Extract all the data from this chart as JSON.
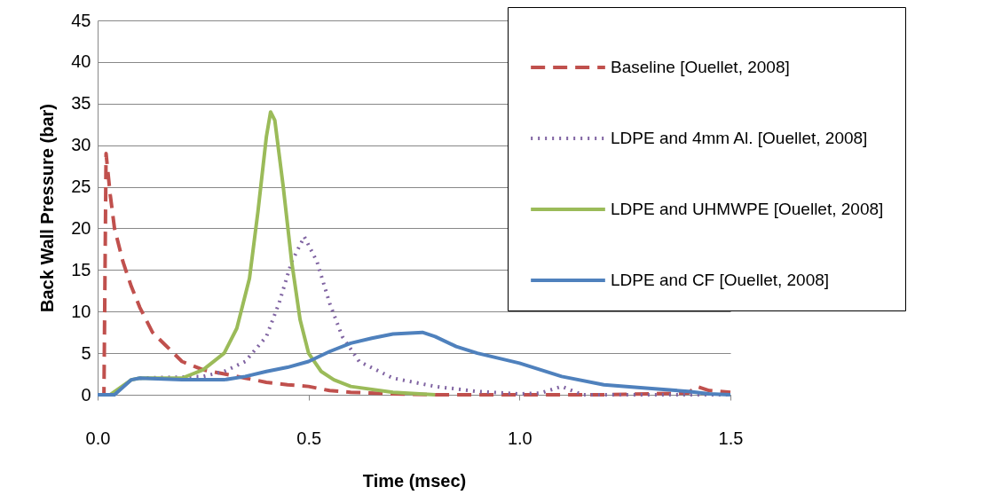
{
  "chart_data": {
    "type": "line",
    "xlabel": "Time (msec)",
    "ylabel": "Back Wall Pressure (bar)",
    "xlim": [
      0,
      1.5
    ],
    "xticks": [
      {
        "value": 0,
        "label": "0.0"
      },
      {
        "value": 0.5,
        "label": "0.5"
      },
      {
        "value": 1,
        "label": "1.0"
      },
      {
        "value": 1.5,
        "label": "1.5"
      }
    ],
    "ylim": [
      0,
      45
    ],
    "yticks": [
      0,
      5,
      10,
      15,
      20,
      25,
      30,
      35,
      40,
      45
    ],
    "grid": "y",
    "legend": "top right",
    "marker": "none",
    "series": [
      {
        "name": "Baseline [Ouellet, 2008]",
        "color": "#c0504d",
        "line_style": "dashed",
        "x": [
          0,
          0.015,
          0.02,
          0.03,
          0.04,
          0.06,
          0.08,
          0.1,
          0.13,
          0.16,
          0.2,
          0.25,
          0.3,
          0.35,
          0.4,
          0.45,
          0.5,
          0.55,
          0.6,
          0.7,
          0.8,
          1.0,
          1.2,
          1.4,
          1.42,
          1.45,
          1.5
        ],
        "values": [
          0,
          0,
          29,
          24,
          20,
          16,
          13,
          10.5,
          7.5,
          6,
          4,
          3,
          2.5,
          2,
          1.5,
          1.2,
          1,
          0.5,
          0.3,
          0.1,
          0,
          0,
          0,
          0.2,
          1,
          0.5,
          0.3
        ]
      },
      {
        "name": "LDPE and 4mm Al. [Ouellet, 2008]",
        "color": "#8064a2",
        "line_style": "dotted",
        "x": [
          0.1,
          0.25,
          0.3,
          0.35,
          0.4,
          0.43,
          0.46,
          0.49,
          0.52,
          0.55,
          0.58,
          0.62,
          0.7,
          0.8,
          0.9,
          1.0,
          1.05,
          1.1,
          1.15,
          1.3,
          1.5
        ],
        "values": [
          2,
          2.2,
          2.8,
          4,
          7,
          11,
          16,
          19,
          16,
          11,
          7,
          4,
          2,
          1,
          0.4,
          0.1,
          0.2,
          1,
          0,
          0,
          0
        ]
      },
      {
        "name": "LDPE and UHMWPE [Ouellet, 2008]",
        "color": "#9bbb59",
        "line_style": "solid",
        "x": [
          0,
          0.03,
          0.08,
          0.1,
          0.2,
          0.25,
          0.3,
          0.33,
          0.36,
          0.38,
          0.4,
          0.41,
          0.42,
          0.44,
          0.46,
          0.48,
          0.5,
          0.53,
          0.56,
          0.6,
          0.7,
          0.8
        ],
        "values": [
          0,
          0,
          1.8,
          2,
          2,
          3,
          5,
          8,
          14,
          22,
          31,
          34,
          33,
          25,
          16,
          9,
          5,
          2.8,
          1.8,
          1,
          0.3,
          0
        ]
      },
      {
        "name": "LDPE and CF [Ouellet, 2008]",
        "color": "#4f81bd",
        "line_style": "solid",
        "x": [
          0,
          0.04,
          0.08,
          0.1,
          0.2,
          0.3,
          0.35,
          0.4,
          0.45,
          0.5,
          0.55,
          0.6,
          0.65,
          0.7,
          0.77,
          0.8,
          0.85,
          0.9,
          1.0,
          1.05,
          1.1,
          1.2,
          1.3,
          1.4,
          1.45,
          1.5
        ],
        "values": [
          0,
          0,
          1.8,
          2,
          1.8,
          1.8,
          2.2,
          2.8,
          3.3,
          4,
          5.2,
          6.2,
          6.8,
          7.3,
          7.5,
          7,
          5.8,
          5,
          3.8,
          3,
          2.2,
          1.2,
          0.8,
          0.4,
          0.1,
          0
        ]
      }
    ]
  }
}
